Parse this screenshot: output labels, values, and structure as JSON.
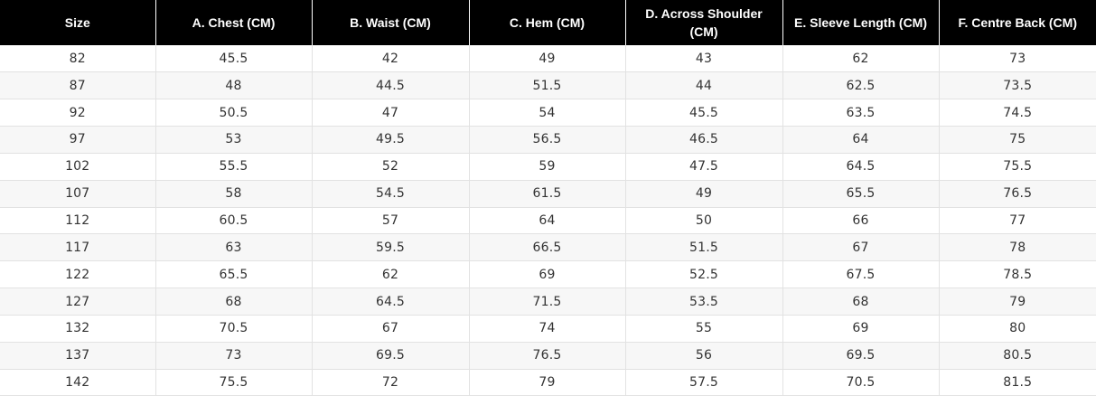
{
  "table": {
    "headers": [
      "Size",
      "A. Chest (CM)",
      "B. Waist (CM)",
      "C. Hem (CM)",
      "D. Across Shoulder (CM)",
      "E. Sleeve Length (CM)",
      "F. Centre Back (CM)"
    ],
    "rows": [
      [
        "82",
        "45.5",
        "42",
        "49",
        "43",
        "62",
        "73"
      ],
      [
        "87",
        "48",
        "44.5",
        "51.5",
        "44",
        "62.5",
        "73.5"
      ],
      [
        "92",
        "50.5",
        "47",
        "54",
        "45.5",
        "63.5",
        "74.5"
      ],
      [
        "97",
        "53",
        "49.5",
        "56.5",
        "46.5",
        "64",
        "75"
      ],
      [
        "102",
        "55.5",
        "52",
        "59",
        "47.5",
        "64.5",
        "75.5"
      ],
      [
        "107",
        "58",
        "54.5",
        "61.5",
        "49",
        "65.5",
        "76.5"
      ],
      [
        "112",
        "60.5",
        "57",
        "64",
        "50",
        "66",
        "77"
      ],
      [
        "117",
        "63",
        "59.5",
        "66.5",
        "51.5",
        "67",
        "78"
      ],
      [
        "122",
        "65.5",
        "62",
        "69",
        "52.5",
        "67.5",
        "78.5"
      ],
      [
        "127",
        "68",
        "64.5",
        "71.5",
        "53.5",
        "68",
        "79"
      ],
      [
        "132",
        "70.5",
        "67",
        "74",
        "55",
        "69",
        "80"
      ],
      [
        "137",
        "73",
        "69.5",
        "76.5",
        "56",
        "69.5",
        "80.5"
      ],
      [
        "142",
        "75.5",
        "72",
        "79",
        "57.5",
        "70.5",
        "81.5"
      ]
    ]
  },
  "colors": {
    "header_background": "#000000",
    "header_text": "#ffffff",
    "row_alt_background": "#f7f7f7",
    "grid_line": "#e2e2e2",
    "cell_text": "#333333"
  }
}
